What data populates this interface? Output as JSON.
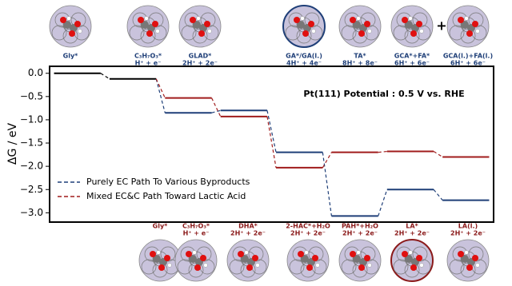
{
  "chart_data": {
    "type": "step",
    "annotation": "Pt(111) Potential : 0.5 V vs. RHE",
    "y_label": "ΔG / eV",
    "top_labels": [
      [
        "Gly*"
      ],
      [
        "C₃H₇O₃*",
        "H⁺ + e⁻"
      ],
      [
        "GLAD*",
        "2H⁺ + 2e⁻"
      ],
      [
        "GA*/GA(l.)",
        "4H⁺ + 4e⁻"
      ],
      [
        "TA*",
        "8H⁺ + 8e⁻"
      ],
      [
        "GCA*+FA*",
        "6H⁺ + 6e⁻"
      ],
      [
        "GCA(l.)+FA(l.)",
        "6H⁺ + 6e⁻"
      ]
    ],
    "bottom_labels": [
      [
        "Gly*"
      ],
      [
        "C₃H₇O₃*",
        "H⁺ + e⁻"
      ],
      [
        "DHA*",
        "2H⁺ + 2e⁻"
      ],
      [
        "2-HAC*+H₂O",
        "2H⁺ + 2e⁻"
      ],
      [
        "PAH*+H₂O",
        "2H⁺ + 2e⁻"
      ],
      [
        "LA*",
        "2H⁺ + 2e⁻"
      ],
      [
        "LA(l.)",
        "2H⁺ + 2e⁻"
      ]
    ],
    "plus": "+",
    "x": [
      1,
      2,
      3,
      4,
      5,
      6,
      7,
      8
    ],
    "xlim": [
      0.5,
      8.5
    ],
    "ylim": [
      -3.2,
      0.15
    ],
    "yticks": [
      {
        "value": 0,
        "label": "0.0"
      },
      {
        "value": -0.5,
        "label": "−0.5"
      },
      {
        "value": -1,
        "label": "−1.0"
      },
      {
        "value": -1.5,
        "label": "−1.5"
      },
      {
        "value": -2,
        "label": "−2.0"
      },
      {
        "value": -2.5,
        "label": "−2.5"
      },
      {
        "value": -3,
        "label": "−3.0"
      }
    ],
    "series": [
      {
        "color": "#000000",
        "values": [
          0.0,
          -0.12,
          null,
          null,
          null,
          null,
          null,
          null
        ]
      },
      {
        "name": "Purely EC Path To Various Byproducts",
        "color": "#1f3f78",
        "values": [
          null,
          null,
          -0.85,
          -0.8,
          -1.7,
          -3.07,
          -2.5,
          -2.73
        ]
      },
      {
        "name": "Mixed EC&C Path Toward Lactic Acid",
        "color": "#a01c1c",
        "values": [
          null,
          null,
          -0.53,
          -0.93,
          -2.03,
          -1.7,
          -1.68,
          -1.8
        ]
      }
    ]
  }
}
